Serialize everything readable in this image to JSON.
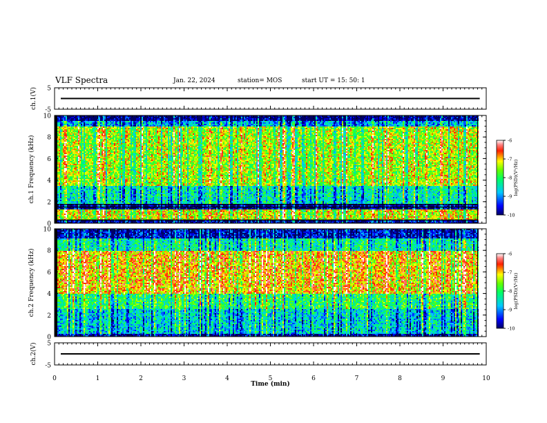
{
  "header": {
    "title": "VLF Spectra",
    "date": "Jan. 22, 2024",
    "station": "station= MOS",
    "start": "start UT =  15: 50: 1"
  },
  "chart_data": [
    {
      "type": "line",
      "ylabel": "ch.1(V)",
      "ylim": [
        -5,
        5
      ],
      "y_ticks": [
        "5",
        "-5"
      ],
      "series": [
        {
          "values_const": 0
        }
      ],
      "xlim": [
        0,
        10
      ]
    },
    {
      "type": "heatmap",
      "ylabel": "ch.1 Frequency (kHz)",
      "ylim": [
        0,
        10
      ],
      "y_ticks": [
        "0",
        "2",
        "4",
        "6",
        "8",
        "10"
      ],
      "xlim": [
        0,
        10
      ],
      "data_end_min": 9.8,
      "colorbar": {
        "label": "log(PSD)(V²/Hz)",
        "range": [
          -10,
          -6
        ],
        "ticks": [
          "-6",
          "-7",
          "-8",
          "-9",
          "-10"
        ]
      },
      "bands": [
        {
          "from": 0,
          "to": 0.3,
          "level": -9.6
        },
        {
          "from": 0.3,
          "to": 1.4,
          "level": -7.2
        },
        {
          "from": 1.4,
          "to": 1.8,
          "level": -9.8
        },
        {
          "from": 1.8,
          "to": 3.5,
          "level": -8.4
        },
        {
          "from": 3.5,
          "to": 9.0,
          "level": -7.4
        },
        {
          "from": 9.0,
          "to": 9.6,
          "level": -8.8
        },
        {
          "from": 9.6,
          "to": 10,
          "level": -9.9
        }
      ]
    },
    {
      "type": "heatmap",
      "ylabel": "ch.2 Frequency (kHz)",
      "ylim": [
        0,
        10
      ],
      "y_ticks": [
        "0",
        "2",
        "4",
        "6",
        "8",
        "10"
      ],
      "xlim": [
        0,
        10
      ],
      "data_end_min": 9.8,
      "colorbar": {
        "label": "log(PSD)(V²/Hz)",
        "range": [
          -10,
          -6
        ],
        "ticks": [
          "-6",
          "-7",
          "-8",
          "-9",
          "-10"
        ]
      },
      "bands": [
        {
          "from": 0,
          "to": 0.3,
          "level": -9.7
        },
        {
          "from": 0.3,
          "to": 2.6,
          "level": -8.6
        },
        {
          "from": 2.6,
          "to": 4.0,
          "level": -8.0
        },
        {
          "from": 4.0,
          "to": 8.0,
          "level": -6.9
        },
        {
          "from": 8.0,
          "to": 9.2,
          "level": -8.3
        },
        {
          "from": 9.2,
          "to": 10,
          "level": -9.6
        }
      ]
    },
    {
      "type": "line",
      "ylabel": "ch.2(V)",
      "ylim": [
        -5,
        5
      ],
      "y_ticks": [
        "5",
        "-5"
      ],
      "series": [
        {
          "values_const": 0
        }
      ],
      "xlim": [
        0,
        10
      ]
    }
  ],
  "x_axis": {
    "label": "Time (min)",
    "ticks": [
      "0",
      "1",
      "2",
      "3",
      "4",
      "5",
      "6",
      "7",
      "8",
      "9",
      "10"
    ]
  }
}
